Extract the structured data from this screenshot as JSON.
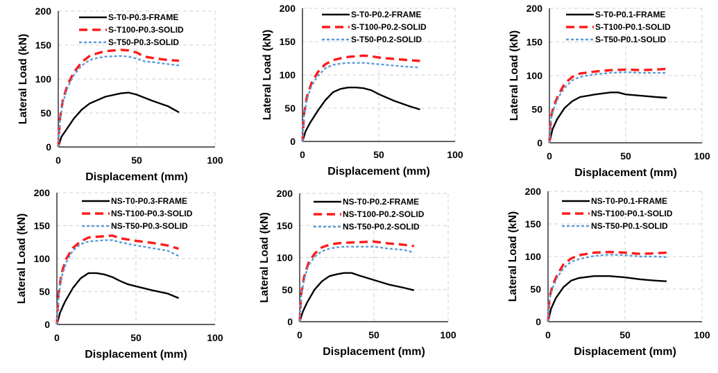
{
  "figure": {
    "colors": {
      "frame": "#000000",
      "t100_solid": "#ff1a1a",
      "t50_solid": "#5b9bd5",
      "grid": "#d0d0d0",
      "axis": "#000000"
    },
    "ylabel": "Lateral Load (kN)",
    "xlabel": "Displacement (mm)"
  },
  "chart_data": [
    {
      "type": "line",
      "xlabel": "Displacement (mm)",
      "ylabel": "Lateral Load (kN)",
      "xlim": [
        0,
        100
      ],
      "ylim": [
        0,
        200
      ],
      "xticks": [
        "0",
        "50",
        "100"
      ],
      "yticks": [
        "0",
        "50",
        "100",
        "150",
        "200"
      ],
      "grid": true,
      "legend_position": "top",
      "series": [
        {
          "name": "S-T0-P0.3-FRAME",
          "style": "solid",
          "color": "#000000",
          "x": [
            0,
            2,
            5,
            10,
            15,
            20,
            30,
            40,
            45,
            50,
            60,
            70,
            77
          ],
          "y": [
            0,
            15,
            25,
            42,
            55,
            64,
            74,
            79,
            80,
            77,
            68,
            60,
            51
          ]
        },
        {
          "name": "S-T100-P0.3-SOLID",
          "style": "dash",
          "color": "#ff1a1a",
          "x": [
            0,
            1,
            3,
            6,
            10,
            15,
            20,
            25,
            30,
            40,
            45,
            50,
            55,
            60,
            70,
            77
          ],
          "y": [
            0,
            40,
            70,
            92,
            110,
            125,
            134,
            138,
            141,
            143,
            142,
            139,
            133,
            131,
            128,
            127
          ]
        },
        {
          "name": "S-T50-P0.3-SOLID",
          "style": "dot",
          "color": "#5b9bd5",
          "x": [
            0,
            1,
            3,
            6,
            10,
            15,
            20,
            25,
            30,
            40,
            45,
            50,
            55,
            60,
            70,
            77
          ],
          "y": [
            0,
            38,
            66,
            88,
            106,
            120,
            128,
            131,
            133,
            134,
            133,
            130,
            126,
            125,
            122,
            120
          ]
        }
      ]
    },
    {
      "type": "line",
      "xlabel": "Displacement (mm)",
      "ylabel": "Lateral Load (kN)",
      "xlim": [
        0,
        100
      ],
      "ylim": [
        0,
        200
      ],
      "xticks": [
        "0",
        "50",
        "100"
      ],
      "yticks": [
        "0",
        "50",
        "100",
        "150",
        "200"
      ],
      "grid": true,
      "legend_position": "top",
      "series": [
        {
          "name": "S-T0-P0.2-FRAME",
          "style": "solid",
          "color": "#000000",
          "x": [
            0,
            2,
            5,
            10,
            15,
            20,
            25,
            30,
            35,
            40,
            45,
            50,
            60,
            70,
            77
          ],
          "y": [
            0,
            15,
            28,
            46,
            62,
            74,
            79,
            81,
            81,
            80,
            77,
            71,
            61,
            53,
            48
          ]
        },
        {
          "name": "S-T100-P0.2-SOLID",
          "style": "dash",
          "color": "#ff1a1a",
          "x": [
            0,
            1,
            3,
            6,
            10,
            15,
            20,
            25,
            30,
            40,
            45,
            50,
            60,
            70,
            77
          ],
          "y": [
            0,
            40,
            68,
            88,
            104,
            116,
            122,
            125,
            127,
            129,
            128,
            126,
            124,
            122,
            121
          ]
        },
        {
          "name": "S-T50-P0.2-SOLID",
          "style": "dot",
          "color": "#5b9bd5",
          "x": [
            0,
            1,
            3,
            6,
            10,
            15,
            20,
            25,
            30,
            40,
            45,
            50,
            60,
            70,
            77
          ],
          "y": [
            0,
            38,
            64,
            84,
            98,
            110,
            115,
            117,
            118,
            118,
            117,
            116,
            114,
            112,
            111
          ]
        }
      ]
    },
    {
      "type": "line",
      "xlabel": "Displacement (mm)",
      "ylabel": "Lateral Load (kN)",
      "xlim": [
        0,
        100
      ],
      "ylim": [
        0,
        200
      ],
      "xticks": [
        "0",
        "50",
        "100"
      ],
      "yticks": [
        "0",
        "50",
        "100",
        "150",
        "200"
      ],
      "grid": true,
      "legend_position": "top",
      "series": [
        {
          "name": "S-T0-P0.1-FRAME",
          "style": "solid",
          "color": "#000000",
          "x": [
            0,
            2,
            5,
            10,
            15,
            20,
            30,
            40,
            45,
            50,
            60,
            70,
            77
          ],
          "y": [
            0,
            20,
            35,
            52,
            62,
            68,
            72,
            75,
            75,
            72,
            70,
            68,
            67
          ]
        },
        {
          "name": "S-T100-P0.1-SOLID",
          "style": "dash",
          "color": "#ff1a1a",
          "x": [
            0,
            1,
            3,
            6,
            10,
            15,
            20,
            30,
            40,
            50,
            60,
            70,
            77
          ],
          "y": [
            0,
            38,
            56,
            72,
            88,
            98,
            103,
            106,
            108,
            109,
            108,
            109,
            110
          ]
        },
        {
          "name": "S-T50-P0.1-SOLID",
          "style": "dot",
          "color": "#5b9bd5",
          "x": [
            0,
            1,
            3,
            6,
            10,
            15,
            20,
            30,
            40,
            50,
            60,
            70,
            77
          ],
          "y": [
            0,
            35,
            52,
            68,
            82,
            93,
            98,
            102,
            104,
            105,
            104,
            104,
            104
          ]
        }
      ]
    },
    {
      "type": "line",
      "xlabel": "Displacement (mm)",
      "ylabel": "Lateral Load (kN)",
      "xlim": [
        0,
        100
      ],
      "ylim": [
        0,
        200
      ],
      "xticks": [
        "0",
        "50",
        "100"
      ],
      "yticks": [
        "0",
        "50",
        "100",
        "150",
        "200"
      ],
      "grid": true,
      "legend_position": "top",
      "series": [
        {
          "name": "NS-T0-P0.3-FRAME",
          "style": "solid",
          "color": "#000000",
          "x": [
            0,
            2,
            5,
            10,
            15,
            20,
            25,
            30,
            35,
            40,
            45,
            50,
            60,
            70,
            77
          ],
          "y": [
            0,
            18,
            34,
            55,
            70,
            78,
            78,
            76,
            72,
            66,
            61,
            58,
            52,
            47,
            40
          ]
        },
        {
          "name": "NS-T100-P0.3-SOLID",
          "style": "dash",
          "color": "#ff1a1a",
          "x": [
            0,
            1,
            3,
            6,
            10,
            15,
            20,
            25,
            30,
            35,
            40,
            50,
            60,
            70,
            77
          ],
          "y": [
            0,
            45,
            78,
            100,
            116,
            126,
            132,
            133,
            134,
            135,
            131,
            127,
            124,
            120,
            115
          ]
        },
        {
          "name": "NS-T50-P0.3-SOLID",
          "style": "dot",
          "color": "#5b9bd5",
          "x": [
            0,
            1,
            3,
            6,
            10,
            15,
            20,
            25,
            30,
            35,
            40,
            50,
            60,
            70,
            77
          ],
          "y": [
            0,
            42,
            72,
            95,
            112,
            122,
            126,
            127,
            128,
            128,
            125,
            120,
            116,
            112,
            104
          ]
        }
      ]
    },
    {
      "type": "line",
      "xlabel": "Displacement (mm)",
      "ylabel": "Lateral Load (kN)",
      "xlim": [
        0,
        100
      ],
      "ylim": [
        0,
        200
      ],
      "xticks": [
        "0",
        "50",
        "100"
      ],
      "yticks": [
        "0",
        "50",
        "100",
        "150",
        "200"
      ],
      "grid": true,
      "legend_position": "top",
      "series": [
        {
          "name": "NS-T0-P0.2-FRAME",
          "style": "solid",
          "color": "#000000",
          "x": [
            0,
            2,
            5,
            10,
            15,
            20,
            25,
            30,
            35,
            40,
            50,
            60,
            70,
            77
          ],
          "y": [
            0,
            15,
            30,
            50,
            63,
            71,
            74,
            76,
            76,
            72,
            65,
            58,
            53,
            49
          ]
        },
        {
          "name": "NS-T100-P0.2-SOLID",
          "style": "dash",
          "color": "#ff1a1a",
          "x": [
            0,
            1,
            3,
            6,
            10,
            15,
            20,
            25,
            30,
            40,
            50,
            60,
            70,
            77
          ],
          "y": [
            0,
            42,
            70,
            92,
            106,
            116,
            120,
            122,
            123,
            124,
            125,
            122,
            120,
            118
          ]
        },
        {
          "name": "NS-T50-P0.2-SOLID",
          "style": "dot",
          "color": "#5b9bd5",
          "x": [
            0,
            1,
            3,
            6,
            10,
            15,
            20,
            25,
            30,
            40,
            50,
            60,
            70,
            77
          ],
          "y": [
            0,
            40,
            66,
            88,
            101,
            110,
            114,
            116,
            117,
            117,
            117,
            114,
            112,
            108
          ]
        }
      ]
    },
    {
      "type": "line",
      "xlabel": "Displacement (mm)",
      "ylabel": "Lateral Load (kN)",
      "xlim": [
        0,
        100
      ],
      "ylim": [
        0,
        200
      ],
      "xticks": [
        "0",
        "50",
        "100"
      ],
      "yticks": [
        "0",
        "50",
        "100",
        "150",
        "200"
      ],
      "grid": true,
      "legend_position": "top",
      "series": [
        {
          "name": "NS-T0-P0.1-FRAME",
          "style": "solid",
          "color": "#000000",
          "x": [
            0,
            2,
            5,
            10,
            15,
            20,
            30,
            40,
            50,
            60,
            70,
            77
          ],
          "y": [
            0,
            20,
            36,
            53,
            63,
            67,
            70,
            70,
            68,
            65,
            63,
            62
          ]
        },
        {
          "name": "NS-T100-P0.1-SOLID",
          "style": "dash",
          "color": "#ff1a1a",
          "x": [
            0,
            1,
            3,
            6,
            10,
            15,
            20,
            30,
            40,
            50,
            60,
            70,
            77
          ],
          "y": [
            0,
            38,
            56,
            72,
            88,
            97,
            102,
            106,
            107,
            106,
            104,
            105,
            106
          ]
        },
        {
          "name": "NS-T50-P0.1-SOLID",
          "style": "dot",
          "color": "#5b9bd5",
          "x": [
            0,
            1,
            3,
            6,
            10,
            15,
            20,
            30,
            40,
            50,
            60,
            70,
            77
          ],
          "y": [
            0,
            35,
            52,
            68,
            82,
            92,
            96,
            101,
            103,
            102,
            100,
            100,
            99
          ]
        }
      ]
    }
  ]
}
